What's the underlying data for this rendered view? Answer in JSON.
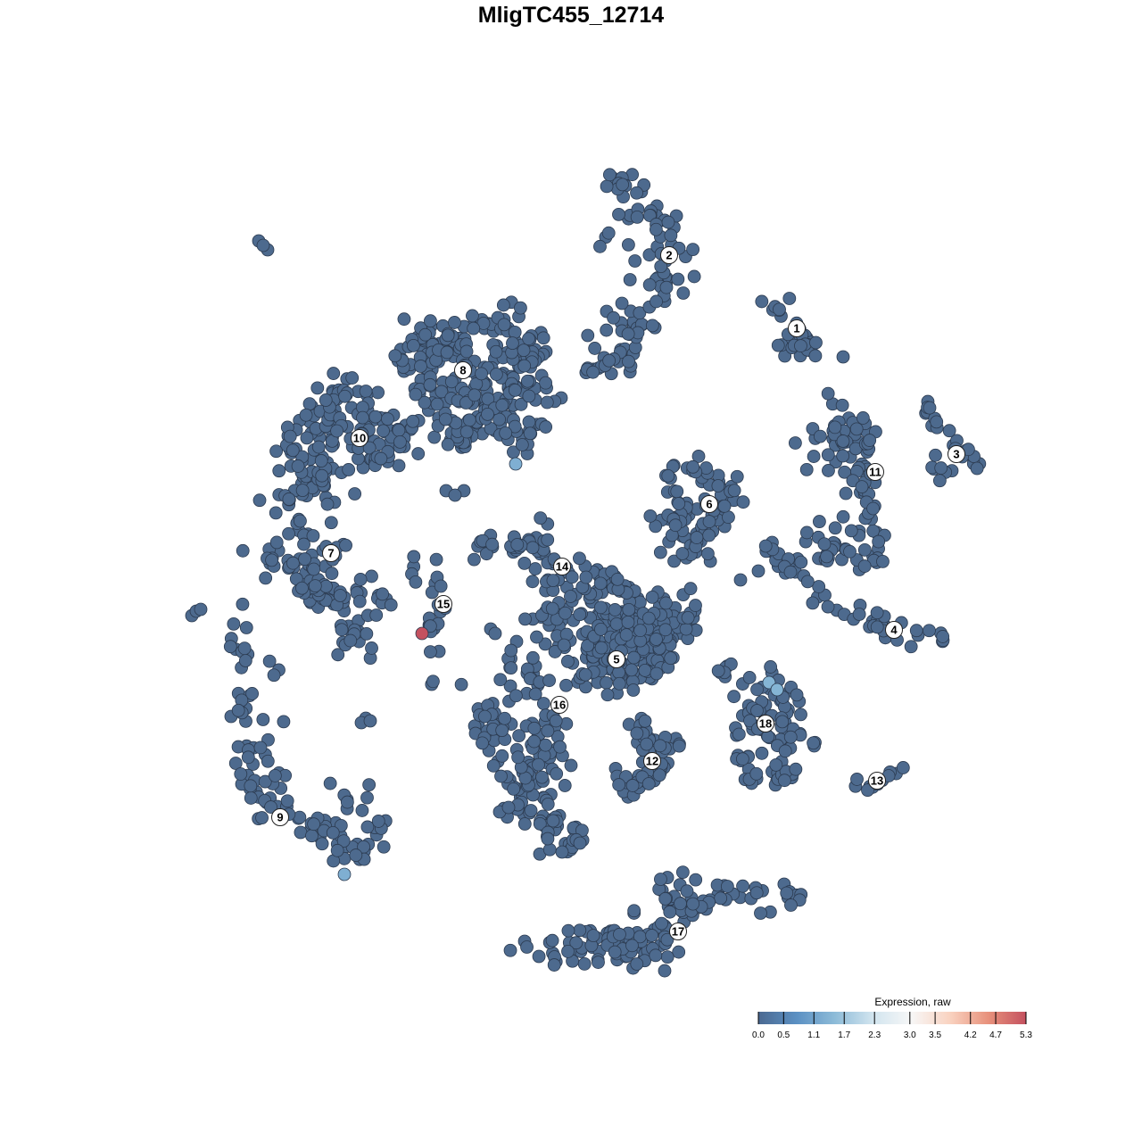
{
  "chart_data": {
    "type": "scatter",
    "title": "MligTC455_12714",
    "axes_visible": false,
    "grid": false,
    "point_color_default": "#4d6a8e",
    "point_stroke": "#2c3b50",
    "clusters": [
      {
        "label": "1",
        "label_position": [
          25.3,
          27.2
        ],
        "n": 35,
        "spread": 1.2,
        "spine": [
          [
            23,
            30
          ],
          [
            24.5,
            27
          ],
          [
            26,
            26
          ],
          [
            27,
            25.5
          ],
          [
            24,
            25
          ]
        ]
      },
      {
        "label": "2",
        "label_position": [
          11,
          35.4
        ],
        "n": 110,
        "spread": 1.5,
        "spine": [
          [
            5.2,
            44
          ],
          [
            8,
            42.5
          ],
          [
            10.5,
            39
          ],
          [
            12,
            35
          ],
          [
            11,
            32
          ],
          [
            8,
            28
          ],
          [
            6.5,
            25
          ],
          [
            5,
            23
          ],
          [
            2,
            22.5
          ]
        ]
      },
      {
        "label": "3",
        "label_position": [
          43.2,
          13.1
        ],
        "n": 30,
        "spread": 1,
        "spine": [
          [
            39,
            19
          ],
          [
            40.5,
            17.5
          ],
          [
            42,
            15
          ],
          [
            44,
            13
          ],
          [
            46,
            12
          ],
          [
            41,
            10.5
          ]
        ]
      },
      {
        "label": "4",
        "label_position": [
          36.2,
          -6.6
        ],
        "n": 50,
        "spread": 0.8,
        "spine": [
          [
            22,
            3
          ],
          [
            24,
            0
          ],
          [
            27,
            -2.5
          ],
          [
            30,
            -4.5
          ],
          [
            34,
            -6.5
          ],
          [
            38,
            -7.5
          ],
          [
            41.5,
            -7
          ]
        ]
      },
      {
        "label": "5",
        "label_position": [
          5.1,
          -9.9
        ],
        "n": 260,
        "spread": 2.5,
        "spine": [
          [
            5,
            -8
          ],
          [
            3,
            -5
          ],
          [
            7,
            -4
          ],
          [
            1,
            -10
          ],
          [
            9,
            -11
          ],
          [
            5,
            -13
          ],
          [
            10,
            -7
          ],
          [
            12,
            -5
          ],
          [
            -2,
            -6
          ]
        ]
      },
      {
        "label": "6",
        "label_position": [
          15.5,
          7.5
        ],
        "n": 90,
        "spread": 1.5,
        "spine": [
          [
            11.5,
            11.5
          ],
          [
            15,
            12
          ],
          [
            17,
            10
          ],
          [
            16,
            6
          ],
          [
            14,
            4
          ],
          [
            12,
            5
          ],
          [
            10,
            7
          ],
          [
            18.5,
            8
          ],
          [
            15,
            2
          ],
          [
            13,
            0
          ]
        ]
      },
      {
        "label": "7",
        "label_position": [
          -26.9,
          2
        ],
        "n": 110,
        "spread": 1.6,
        "spine": [
          [
            -34,
            2
          ],
          [
            -30,
            4
          ],
          [
            -27,
            3
          ],
          [
            -28,
            -1
          ],
          [
            -26,
            -4
          ],
          [
            -24,
            -6
          ],
          [
            -25,
            -8
          ],
          [
            -22,
            -3
          ],
          [
            -29,
            -3
          ]
        ]
      },
      {
        "label": "8",
        "label_position": [
          -12.1,
          22.5
        ],
        "n": 280,
        "spread": 2,
        "spine": [
          [
            -17,
            26
          ],
          [
            -12,
            27
          ],
          [
            -7,
            27.5
          ],
          [
            -4,
            25
          ],
          [
            -4,
            20
          ],
          [
            -5,
            15
          ],
          [
            -10,
            17
          ],
          [
            -15,
            20
          ],
          [
            -18,
            23
          ],
          [
            -9,
            22
          ],
          [
            -13,
            15
          ]
        ]
      },
      {
        "label": "9",
        "label_position": [
          -32.6,
          -27.6
        ],
        "n": 110,
        "spread": 1.2,
        "spine": [
          [
            -37,
            -3
          ],
          [
            -37,
            -8
          ],
          [
            -37,
            -14
          ],
          [
            -37,
            -20
          ],
          [
            -36,
            -24
          ],
          [
            -34,
            -27
          ],
          [
            -31,
            -28
          ],
          [
            -27,
            -30
          ],
          [
            -24,
            -32
          ],
          [
            -22,
            -31
          ],
          [
            -21,
            -29
          ]
        ]
      },
      {
        "label": "10",
        "label_position": [
          -23.7,
          14.9
        ],
        "n": 170,
        "spread": 1.8,
        "spine": [
          [
            -32,
            14
          ],
          [
            -27,
            16
          ],
          [
            -22,
            17
          ],
          [
            -18,
            16
          ],
          [
            -30,
            10
          ],
          [
            -33,
            7
          ],
          [
            -28,
            9
          ],
          [
            -22,
            12
          ],
          [
            -23,
            20
          ],
          [
            -27,
            21
          ]
        ]
      },
      {
        "label": "11",
        "label_position": [
          34.1,
          11.1
        ],
        "n": 110,
        "spread": 1.3,
        "spine": [
          [
            29.5,
            20
          ],
          [
            32,
            17
          ],
          [
            33,
            14
          ],
          [
            31,
            12.5
          ],
          [
            28,
            13.5
          ],
          [
            25,
            14
          ],
          [
            33,
            11
          ],
          [
            33,
            7
          ],
          [
            30,
            4
          ],
          [
            28,
            2
          ],
          [
            33,
            1
          ],
          [
            35,
            1
          ]
        ]
      },
      {
        "label": "12",
        "label_position": [
          9.1,
          -21.3
        ],
        "n": 60,
        "spread": 1.2,
        "spine": [
          [
            7,
            -17
          ],
          [
            8,
            -19.5
          ],
          [
            10,
            -22
          ],
          [
            8,
            -24
          ],
          [
            6,
            -24.5
          ],
          [
            11,
            -19
          ]
        ]
      },
      {
        "label": "13",
        "label_position": [
          34.3,
          -23.5
        ],
        "n": 12,
        "spread": 0.6,
        "spine": [
          [
            31.5,
            -23.8
          ],
          [
            34,
            -24
          ],
          [
            35.5,
            -23
          ],
          [
            37,
            -22.2
          ]
        ]
      },
      {
        "label": "14",
        "label_position": [
          -1,
          0.5
        ],
        "n": 80,
        "spread": 1.2,
        "spine": [
          [
            -10,
            3
          ],
          [
            -7,
            3
          ],
          [
            -4,
            4
          ],
          [
            -2,
            1
          ],
          [
            -2,
            -2
          ],
          [
            1,
            0
          ],
          [
            4,
            -1
          ],
          [
            7,
            -1.5
          ],
          [
            3,
            -3
          ]
        ]
      },
      {
        "label": "15",
        "label_position": [
          -14.3,
          -3.7
        ],
        "n": 25,
        "spread": 0.7,
        "spine": [
          [
            -18,
            1.5
          ],
          [
            -15.5,
            1
          ],
          [
            -15,
            -1
          ],
          [
            -14.5,
            -4
          ],
          [
            -15.5,
            -6
          ],
          [
            -16.5,
            -7
          ],
          [
            -16,
            -12
          ],
          [
            -15,
            -12.5
          ],
          [
            -12.5,
            -12.2
          ]
        ]
      },
      {
        "label": "16",
        "label_position": [
          -1.3,
          -15
        ],
        "n": 160,
        "spread": 1.5,
        "spine": [
          [
            -6,
            -10
          ],
          [
            -4,
            -12
          ],
          [
            -2,
            -15
          ],
          [
            -1,
            -19
          ],
          [
            -9,
            -16
          ],
          [
            -11,
            -17
          ],
          [
            -5,
            -18
          ],
          [
            -3,
            -21
          ],
          [
            -5,
            -23
          ],
          [
            -6,
            -25
          ],
          [
            -7,
            -27
          ],
          [
            -3,
            -28
          ],
          [
            -1,
            -31
          ],
          [
            0,
            -30
          ]
        ]
      },
      {
        "label": "17",
        "label_position": [
          12,
          -40.4
        ],
        "n": 150,
        "spread": 1.3,
        "spine": [
          [
            -6,
            -42
          ],
          [
            -3,
            -43
          ],
          [
            0,
            -42.5
          ],
          [
            3,
            -42
          ],
          [
            6,
            -41
          ],
          [
            10,
            -40
          ],
          [
            13,
            -37.5
          ],
          [
            17,
            -36
          ],
          [
            21,
            -36
          ],
          [
            25,
            -37
          ],
          [
            10,
            -43
          ],
          [
            7,
            -43
          ],
          [
            12,
            -35
          ]
        ]
      },
      {
        "label": "18",
        "label_position": [
          21.8,
          -17.1
        ],
        "n": 100,
        "spread": 1.2,
        "spine": [
          [
            17,
            -11
          ],
          [
            20,
            -11.5
          ],
          [
            23,
            -12
          ],
          [
            19,
            -16
          ],
          [
            21,
            -18
          ],
          [
            19,
            -21
          ],
          [
            20,
            -23.5
          ],
          [
            23,
            -24.5
          ],
          [
            26,
            -22
          ],
          [
            27,
            -19
          ],
          [
            25,
            -17
          ],
          [
            24,
            -14
          ]
        ]
      }
    ],
    "isolated_points": [
      [
        -35,
        37
      ],
      [
        -34,
        36
      ],
      [
        -34.5,
        36.5
      ],
      [
        -42.5,
        -5
      ],
      [
        -42,
        -4.5
      ],
      [
        -41.5,
        -4.3
      ],
      [
        -23,
        -16.5
      ],
      [
        -23.5,
        -17
      ],
      [
        -22.5,
        -16.8
      ],
      [
        -9,
        -6.5
      ],
      [
        -8.5,
        -7
      ],
      [
        -8,
        -27
      ],
      [
        -7,
        -26.5
      ],
      [
        -2,
        -28
      ],
      [
        1,
        -30.5
      ],
      [
        -1,
        -31.5
      ],
      [
        -14,
        9
      ],
      [
        -12,
        9
      ],
      [
        -13,
        8.5
      ],
      [
        19,
        -1
      ],
      [
        21,
        0
      ],
      [
        30.5,
        24
      ]
    ],
    "highlighted_points": [
      {
        "x": -16.7,
        "y": -7,
        "value": 5.3
      },
      {
        "x": -6.2,
        "y": 12,
        "value": 1.3
      },
      {
        "x": 22.2,
        "y": -12.5,
        "value": 1.4
      },
      {
        "x": 23.1,
        "y": -13.3,
        "value": 1.4
      },
      {
        "x": -25.4,
        "y": -34,
        "value": 1.3
      }
    ],
    "colorbar": {
      "title": "Expression, raw",
      "range": [
        0,
        5.3
      ],
      "ticks": [
        "0.0",
        "0.5",
        "1.1",
        "1.7",
        "2.3",
        "3.0",
        "3.5",
        "4.2",
        "4.7",
        "5.3"
      ],
      "tick_values": [
        0,
        0.5,
        1.1,
        1.7,
        2.3,
        3.0,
        3.5,
        4.2,
        4.7,
        5.3
      ],
      "colors": [
        "#4b6991",
        "#5b90c3",
        "#8dbbd8",
        "#d2e5ef",
        "#f7f7f7",
        "#f9d3c1",
        "#e8927c",
        "#c4515f"
      ]
    },
    "legend_position": "bottom-right"
  }
}
